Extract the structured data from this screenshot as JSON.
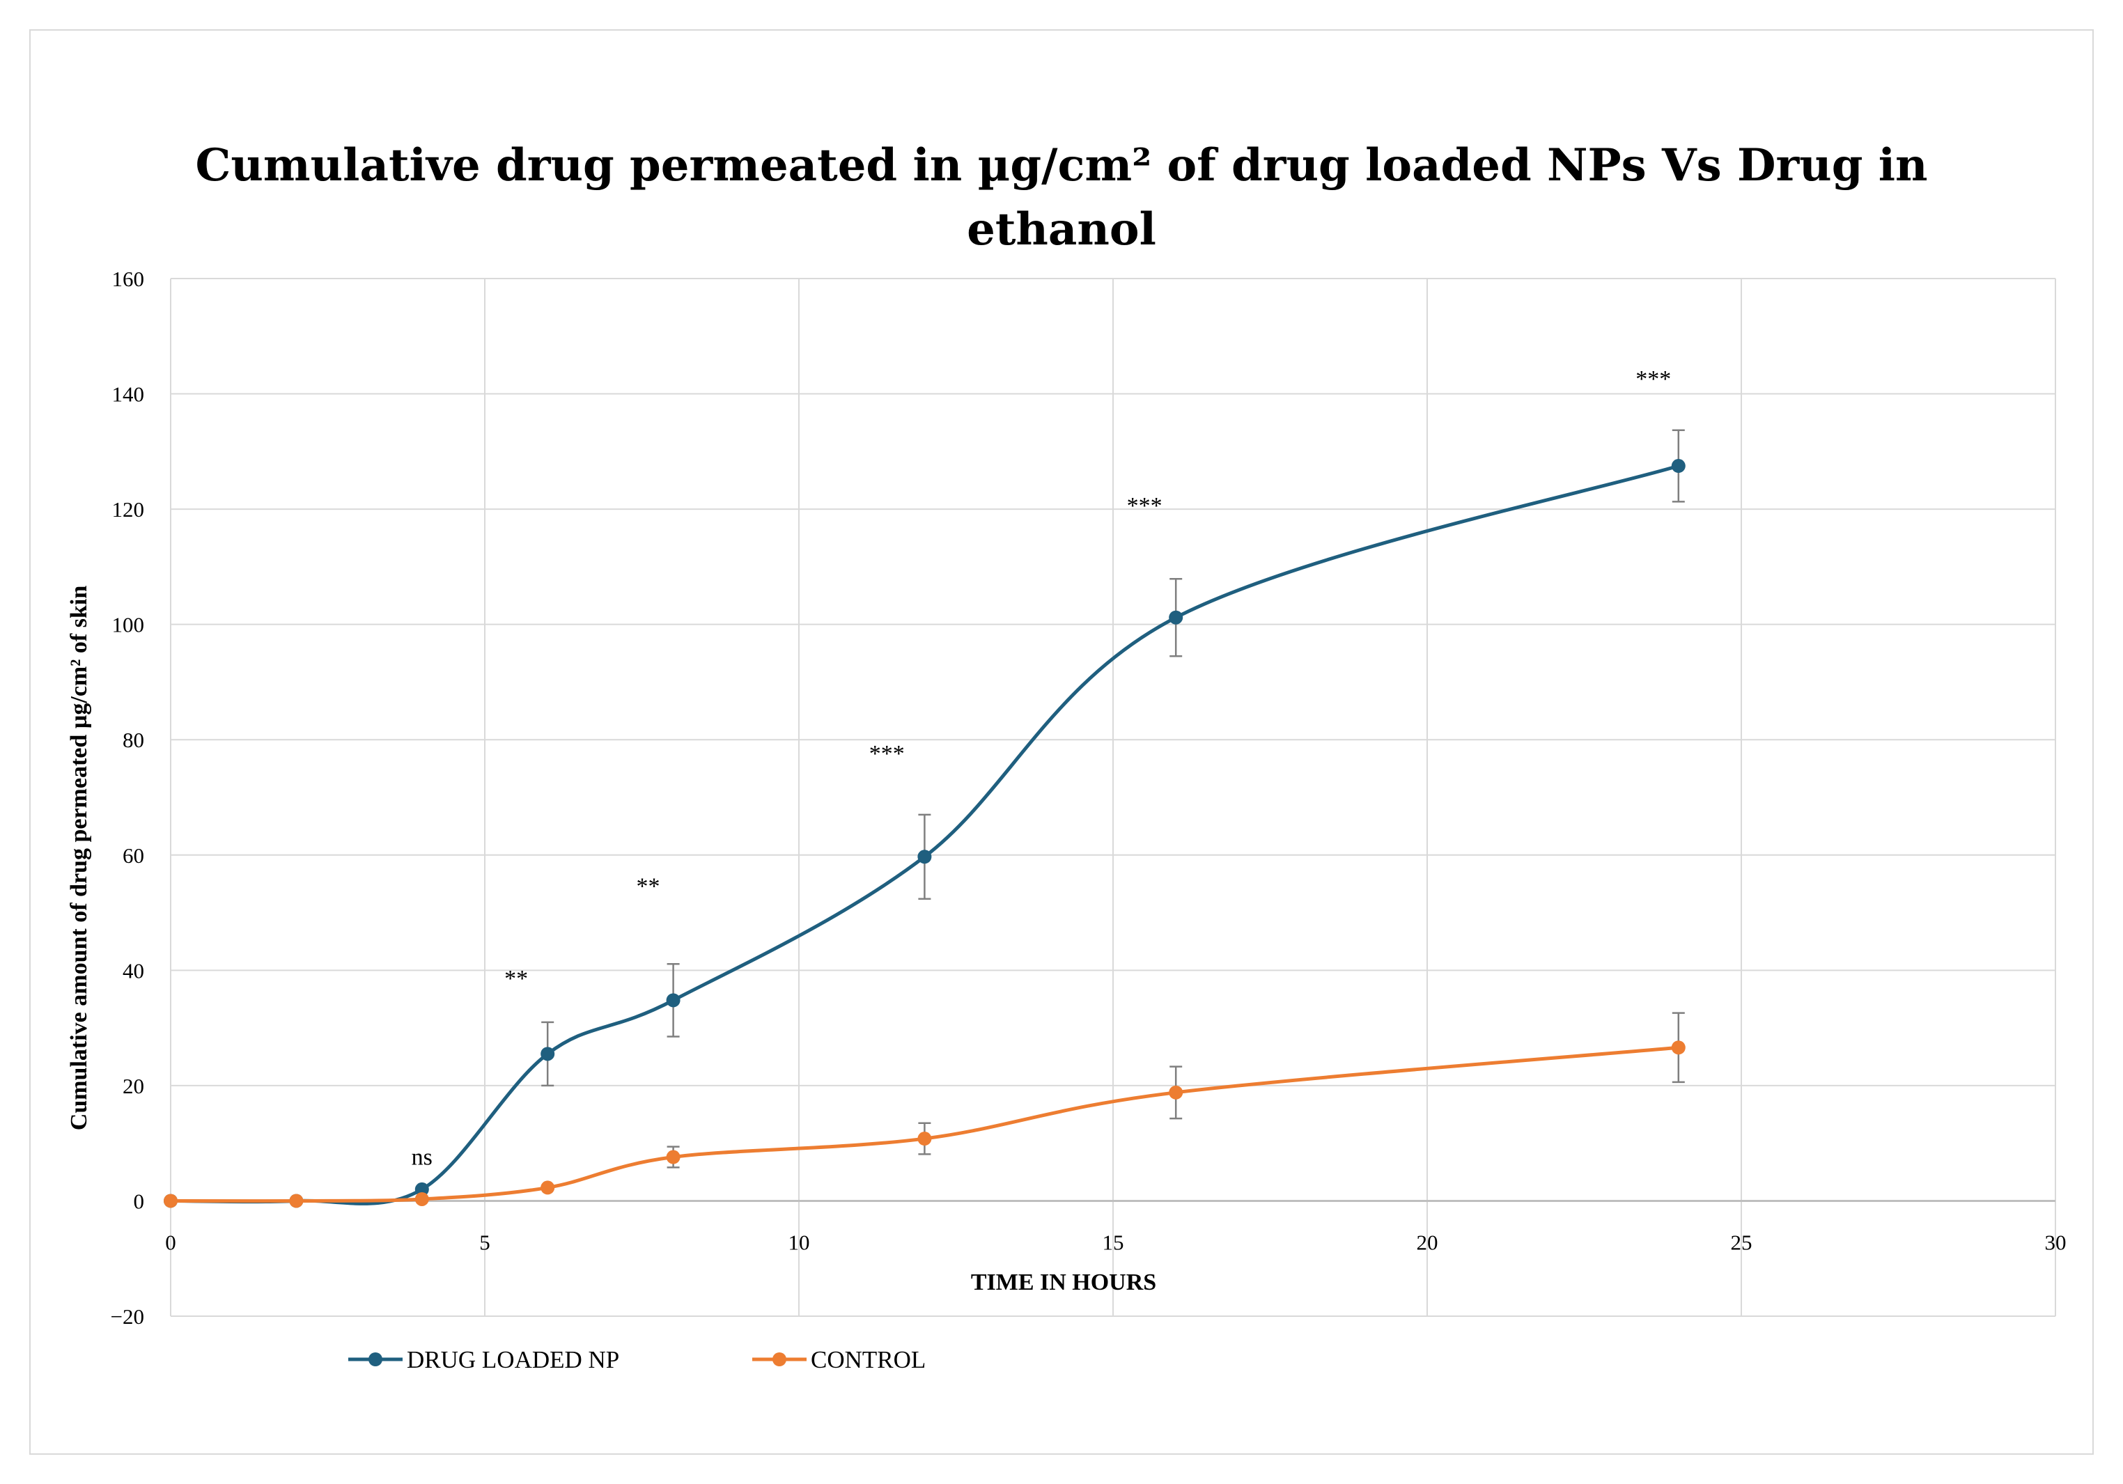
{
  "chart_data": {
    "type": "line",
    "title_line1": "Cumulative drug permeated in µg/cm² of drug loaded NPs Vs Drug in",
    "title_line2": "ethanol",
    "xlabel": "TIME IN HOURS",
    "ylabel": "Cumulative amount of drug permeated µg/cm²  of skin",
    "xlim": [
      0,
      30
    ],
    "ylim": [
      -20,
      160
    ],
    "xticks": [
      0,
      5,
      10,
      15,
      20,
      25,
      30
    ],
    "yticks": [
      -20,
      0,
      20,
      40,
      60,
      80,
      100,
      120,
      140,
      160
    ],
    "ytick_labels": [
      "−20",
      "0",
      "20",
      "40",
      "60",
      "80",
      "100",
      "120",
      "140",
      "160"
    ],
    "grid": true,
    "legend_position": "bottom-left",
    "series": [
      {
        "name": "DRUG LOADED NP",
        "color": "#1f5f7f",
        "x": [
          0,
          2,
          4,
          6,
          8,
          12,
          16,
          24
        ],
        "values": [
          0,
          0,
          2,
          25.5,
          34.8,
          59.7,
          101.2,
          127.5
        ],
        "errors": [
          0,
          0,
          0,
          5.5,
          6.3,
          7.3,
          6.7,
          6.2
        ]
      },
      {
        "name": "CONTROL",
        "color": "#ed7d31",
        "x": [
          0,
          2,
          4,
          6,
          8,
          12,
          16,
          24
        ],
        "values": [
          0,
          0,
          0.3,
          2.3,
          7.6,
          10.8,
          18.8,
          26.6
        ],
        "errors": [
          0,
          0,
          0,
          0,
          1.8,
          2.7,
          4.5,
          6
        ]
      }
    ],
    "annotations": [
      {
        "text": "ns",
        "x": 4,
        "y": 7.5
      },
      {
        "text": "**",
        "x": 5.5,
        "y": 38.5
      },
      {
        "text": "**",
        "x": 7.6,
        "y": 54.5
      },
      {
        "text": "***",
        "x": 11.4,
        "y": 77.5
      },
      {
        "text": "***",
        "x": 15.5,
        "y": 120.5
      },
      {
        "text": "***",
        "x": 23.6,
        "y": 142.5
      }
    ]
  }
}
